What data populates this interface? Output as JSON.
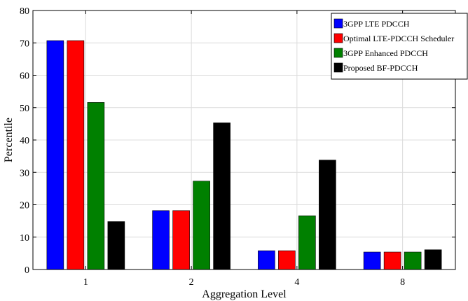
{
  "chart_data": {
    "type": "bar",
    "title": "",
    "xlabel": "Aggregation  Level",
    "ylabel": "Percentile",
    "categories": [
      "1",
      "2",
      "4",
      "8"
    ],
    "ylim": [
      0,
      80
    ],
    "yticks": [
      0,
      10,
      20,
      30,
      40,
      50,
      60,
      70,
      80
    ],
    "grid": true,
    "legend_position": "top-right",
    "series": [
      {
        "name": "3GPP LTE PDCCH",
        "color": "#0000ff",
        "values": [
          70.7,
          18.2,
          5.8,
          5.4
        ]
      },
      {
        "name": "Optimal LTE-PDCCH Scheduler",
        "color": "#ff0000",
        "values": [
          70.7,
          18.2,
          5.8,
          5.4
        ]
      },
      {
        "name": "3GPP Enhanced PDCCH",
        "color": "#008000",
        "values": [
          51.6,
          27.3,
          16.6,
          5.4
        ]
      },
      {
        "name": "Proposed BF-PDCCH",
        "color": "#000000",
        "values": [
          14.8,
          45.3,
          33.8,
          6.1
        ]
      }
    ]
  }
}
